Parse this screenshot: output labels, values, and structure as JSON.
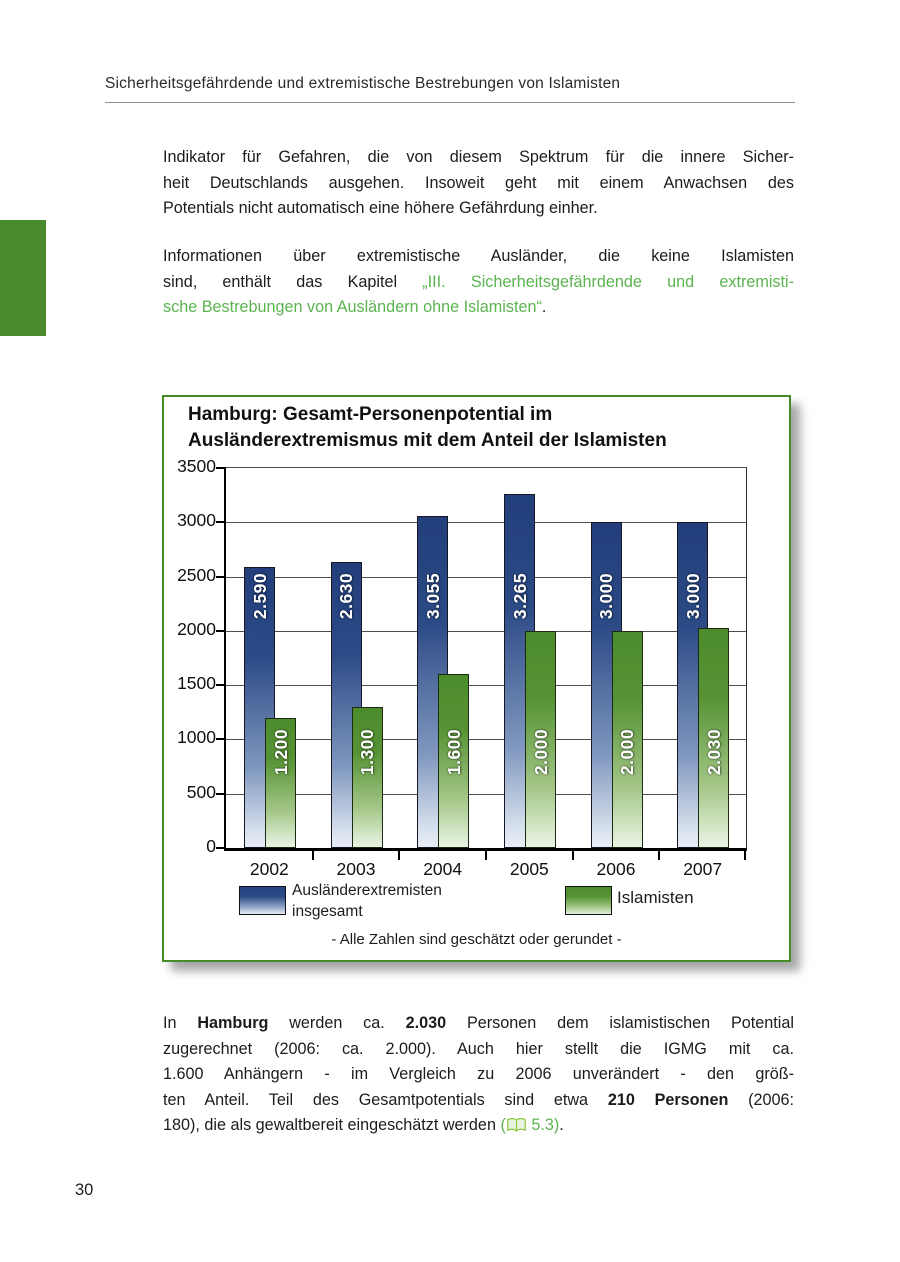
{
  "page": {
    "number": "30"
  },
  "header": {
    "title": "Sicherheitsgefährdende und extremistische Bestrebungen von Islamisten"
  },
  "colors": {
    "link_green": "#5bb44f",
    "margin_tab_green": "#4a8b2b",
    "chart_border_green": "#468c26",
    "bar_blue_top": "#24427e",
    "bar_green_top": "#4c8c2c"
  },
  "paragraphs": {
    "p1": {
      "lines": [
        {
          "segments": [
            {
              "t": "Indikator für Gefahren, die von diesem Spektrum für die innere Sicher-"
            }
          ]
        },
        {
          "segments": [
            {
              "t": "heit Deutschlands ausgehen. Insoweit geht mit einem Anwachsen des"
            }
          ]
        },
        {
          "last": true,
          "segments": [
            {
              "t": "Potentials nicht automatisch eine höhere Gefährdung einher."
            }
          ]
        }
      ]
    },
    "p2": {
      "lines": [
        {
          "segments": [
            {
              "t": "Informationen über extremistische Ausländer, die keine Islamisten"
            }
          ]
        },
        {
          "segments": [
            {
              "t": "sind, enthält das Kapitel "
            },
            {
              "t": "„III. Sicherheitsgefährdende und extremisti-",
              "s": "g",
              "name": "chapter-link",
              "inter": true
            }
          ]
        },
        {
          "last": true,
          "segments": [
            {
              "t": "sche Bestrebungen von Ausländern ohne Islamisten“",
              "s": "g",
              "name": "chapter-link",
              "inter": true
            },
            {
              "t": "."
            }
          ]
        }
      ]
    },
    "p3": {
      "lines": [
        {
          "segments": [
            {
              "t": "In "
            },
            {
              "t": "Hamburg",
              "s": "b"
            },
            {
              "t": " werden ca. "
            },
            {
              "t": "2.030",
              "s": "b"
            },
            {
              "t": " Personen dem islamistischen Potential"
            }
          ]
        },
        {
          "segments": [
            {
              "t": "zugerechnet (2006: ca. 2.000). Auch hier stellt die IGMG mit ca."
            }
          ]
        },
        {
          "segments": [
            {
              "t": "1.600 Anhängern - im Vergleich zu 2006 unverändert - den größ-"
            }
          ]
        },
        {
          "segments": [
            {
              "t": "ten Anteil. Teil des Gesamtpotentials sind etwa "
            },
            {
              "t": "210 Personen",
              "s": "b"
            },
            {
              "t": " (2006:"
            }
          ]
        },
        {
          "last": true,
          "segments": [
            {
              "t": "180), die als gewaltbereit eingeschätzt werden "
            },
            {
              "t": "(",
              "s": "g",
              "name": "section-ref",
              "inter": true
            },
            {
              "icon": "book-icon",
              "inter": true
            },
            {
              "t": " 5.3)",
              "s": "g",
              "name": "section-ref",
              "inter": true
            },
            {
              "t": "."
            }
          ]
        }
      ]
    }
  },
  "chart_data": {
    "type": "bar",
    "title_lines": [
      "Hamburg: Gesamt-Personenpotential im",
      "Ausländerextremismus mit dem Anteil der Islamisten"
    ],
    "categories": [
      "2002",
      "2003",
      "2004",
      "2005",
      "2006",
      "2007"
    ],
    "series": [
      {
        "name": "Ausländerextremisten insgesamt",
        "values": [
          2590,
          2630,
          3055,
          3265,
          3000,
          3000
        ],
        "labels": [
          "2.590",
          "2.630",
          "3.055",
          "3.265",
          "3.000",
          "3.000"
        ]
      },
      {
        "name": "Islamisten",
        "values": [
          1200,
          1300,
          1600,
          2000,
          2000,
          2030
        ],
        "labels": [
          "1.200",
          "1.300",
          "1.600",
          "2.000",
          "2.000",
          "2.030"
        ]
      }
    ],
    "ylim": [
      0,
      3500
    ],
    "ytick_step": 500,
    "grid": true,
    "legend": {
      "series1_lines": [
        "Ausländerextremisten",
        "insgesamt"
      ],
      "series2": "Islamisten"
    },
    "note": "- Alle Zahlen sind geschätzt oder gerundet -"
  }
}
